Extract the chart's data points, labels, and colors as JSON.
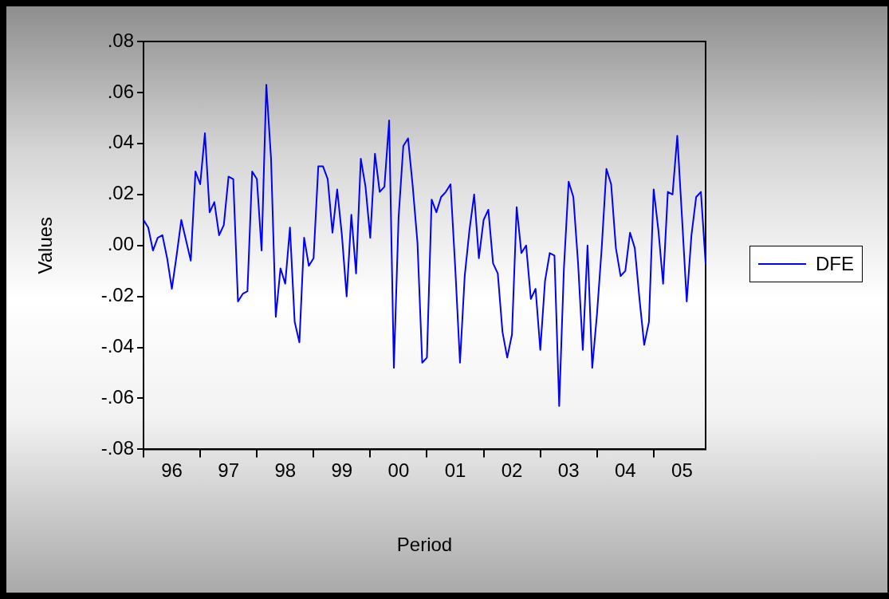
{
  "chart_data": {
    "type": "line",
    "xlabel": "Period",
    "ylabel": "Values",
    "x": [
      "1996-01",
      "1996-02",
      "1996-03",
      "1996-04",
      "1996-05",
      "1996-06",
      "1996-07",
      "1996-08",
      "1996-09",
      "1996-10",
      "1996-11",
      "1996-12",
      "1997-01",
      "1997-02",
      "1997-03",
      "1997-04",
      "1997-05",
      "1997-06",
      "1997-07",
      "1997-08",
      "1997-09",
      "1997-10",
      "1997-11",
      "1997-12",
      "1998-01",
      "1998-02",
      "1998-03",
      "1998-04",
      "1998-05",
      "1998-06",
      "1998-07",
      "1998-08",
      "1998-09",
      "1998-10",
      "1998-11",
      "1998-12",
      "1999-01",
      "1999-02",
      "1999-03",
      "1999-04",
      "1999-05",
      "1999-06",
      "1999-07",
      "1999-08",
      "1999-09",
      "1999-10",
      "1999-11",
      "1999-12",
      "2000-01",
      "2000-02",
      "2000-03",
      "2000-04",
      "2000-05",
      "2000-06",
      "2000-07",
      "2000-08",
      "2000-09",
      "2000-10",
      "2000-11",
      "2000-12",
      "2001-01",
      "2001-02",
      "2001-03",
      "2001-04",
      "2001-05",
      "2001-06",
      "2001-07",
      "2001-08",
      "2001-09",
      "2001-10",
      "2001-11",
      "2001-12",
      "2002-01",
      "2002-02",
      "2002-03",
      "2002-04",
      "2002-05",
      "2002-06",
      "2002-07",
      "2002-08",
      "2002-09",
      "2002-10",
      "2002-11",
      "2002-12",
      "2003-01",
      "2003-02",
      "2003-03",
      "2003-04",
      "2003-05",
      "2003-06",
      "2003-07",
      "2003-08",
      "2003-09",
      "2003-10",
      "2003-11",
      "2003-12",
      "2004-01",
      "2004-02",
      "2004-03",
      "2004-04",
      "2004-05",
      "2004-06",
      "2004-07",
      "2004-08",
      "2004-09",
      "2004-10",
      "2004-11",
      "2004-12",
      "2005-01",
      "2005-02",
      "2005-03",
      "2005-04",
      "2005-05",
      "2005-06",
      "2005-07",
      "2005-08",
      "2005-09",
      "2005-10",
      "2005-11",
      "2005-12"
    ],
    "series": [
      {
        "name": "DFE",
        "color": "#0000ff",
        "values": [
          0.01,
          0.007,
          -0.002,
          0.003,
          0.004,
          -0.005,
          -0.017,
          -0.004,
          0.01,
          0.002,
          -0.006,
          0.029,
          0.024,
          0.044,
          0.013,
          0.017,
          0.004,
          0.008,
          0.027,
          0.026,
          -0.022,
          -0.019,
          -0.018,
          0.029,
          0.026,
          -0.002,
          0.063,
          0.034,
          -0.028,
          -0.009,
          -0.015,
          0.007,
          -0.03,
          -0.038,
          0.003,
          -0.008,
          -0.005,
          0.031,
          0.031,
          0.026,
          0.005,
          0.022,
          0.004,
          -0.02,
          0.012,
          -0.011,
          0.034,
          0.023,
          0.003,
          0.036,
          0.021,
          0.023,
          0.049,
          -0.048,
          0.011,
          0.039,
          0.042,
          0.023,
          0.001,
          -0.046,
          -0.044,
          0.018,
          0.013,
          0.019,
          0.021,
          0.024,
          -0.009,
          -0.046,
          -0.012,
          0.006,
          0.02,
          -0.005,
          0.01,
          0.014,
          -0.007,
          -0.011,
          -0.034,
          -0.044,
          -0.035,
          0.015,
          -0.003,
          0.0,
          -0.021,
          -0.017,
          -0.041,
          -0.014,
          -0.003,
          -0.004,
          -0.063,
          -0.009,
          0.025,
          0.019,
          -0.007,
          -0.041,
          0.0,
          -0.048,
          -0.027,
          -0.001,
          0.03,
          0.024,
          -0.001,
          -0.012,
          -0.01,
          0.005,
          -0.001,
          -0.021,
          -0.039,
          -0.03,
          0.022,
          0.006,
          -0.015,
          0.021,
          0.02,
          0.043,
          0.011,
          -0.022,
          0.004,
          0.019,
          0.021,
          -0.007
        ]
      }
    ],
    "xlim": [
      "1996-01",
      "2005-12"
    ],
    "xticks": [
      {
        "value": "1996-01",
        "label": null
      },
      {
        "value": "1996-07",
        "label": "96"
      },
      {
        "value": "1997-01",
        "label": null
      },
      {
        "value": "1997-07",
        "label": "97"
      },
      {
        "value": "1998-01",
        "label": null
      },
      {
        "value": "1998-07",
        "label": "98"
      },
      {
        "value": "1999-01",
        "label": null
      },
      {
        "value": "1999-07",
        "label": "99"
      },
      {
        "value": "2000-01",
        "label": null
      },
      {
        "value": "2000-07",
        "label": "00"
      },
      {
        "value": "2001-01",
        "label": null
      },
      {
        "value": "2001-07",
        "label": "01"
      },
      {
        "value": "2002-01",
        "label": null
      },
      {
        "value": "2002-07",
        "label": "02"
      },
      {
        "value": "2003-01",
        "label": null
      },
      {
        "value": "2003-07",
        "label": "03"
      },
      {
        "value": "2004-01",
        "label": null
      },
      {
        "value": "2004-07",
        "label": "04"
      },
      {
        "value": "2005-01",
        "label": null
      },
      {
        "value": "2005-07",
        "label": "05"
      }
    ],
    "ylim": [
      -0.08,
      0.08
    ],
    "yticks": [
      {
        "value": -0.08,
        "label": "-.08"
      },
      {
        "value": -0.06,
        "label": "-.06"
      },
      {
        "value": -0.04,
        "label": "-.04"
      },
      {
        "value": -0.02,
        "label": "-.02"
      },
      {
        "value": 0,
        "label": ".00"
      },
      {
        "value": 0.02,
        "label": ".02"
      },
      {
        "value": 0.04,
        "label": ".04"
      },
      {
        "value": 0.06,
        "label": ".06"
      },
      {
        "value": 0.08,
        "label": ".08"
      }
    ],
    "legend": "right",
    "grid": false,
    "marker": "none",
    "line_style": "solid"
  }
}
